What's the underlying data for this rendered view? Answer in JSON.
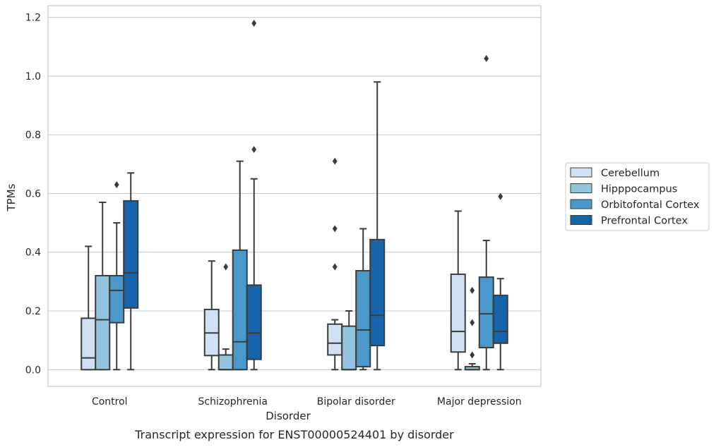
{
  "caption": "Transcript expression for ENST00000524401 by disorder",
  "chart_data": {
    "type": "boxplot",
    "xlabel": "Disorder",
    "ylabel": "TPMs",
    "ylim": [
      -0.057,
      1.24
    ],
    "yticks": [
      0.0,
      0.2,
      0.4,
      0.6,
      0.8,
      1.0,
      1.2
    ],
    "ytick_labels": [
      "0.0",
      "0.2",
      "0.4",
      "0.6",
      "0.8",
      "1.0",
      "1.2"
    ],
    "grid": "horizontal",
    "legend_position": "right",
    "categories": [
      "Control",
      "Schizophrenia",
      "Bipolar disorder",
      "Major depression"
    ],
    "series": [
      {
        "name": "Cerebellum",
        "color": "#cfe1f2",
        "boxes": [
          {
            "whislo": 0.0,
            "q1": 0.0,
            "med": 0.04,
            "q3": 0.175,
            "whishi": 0.42,
            "fliers": []
          },
          {
            "whislo": 0.0,
            "q1": 0.048,
            "med": 0.125,
            "q3": 0.205,
            "whishi": 0.37,
            "fliers": []
          },
          {
            "whislo": 0.0,
            "q1": 0.05,
            "med": 0.09,
            "q3": 0.155,
            "whishi": 0.17,
            "fliers": [
              0.35,
              0.48,
              0.71
            ]
          },
          {
            "whislo": 0.0,
            "q1": 0.06,
            "med": 0.13,
            "q3": 0.325,
            "whishi": 0.54,
            "fliers": []
          }
        ]
      },
      {
        "name": "Hipppocampus",
        "color": "#93c4de",
        "boxes": [
          {
            "whislo": 0.0,
            "q1": 0.0,
            "med": 0.17,
            "q3": 0.32,
            "whishi": 0.57,
            "fliers": []
          },
          {
            "whislo": 0.0,
            "q1": 0.0,
            "med": 0.0,
            "q3": 0.05,
            "whishi": 0.07,
            "fliers": [
              0.35
            ]
          },
          {
            "whislo": 0.0,
            "q1": 0.0,
            "med": 0.0,
            "q3": 0.148,
            "whishi": 0.2,
            "fliers": []
          },
          {
            "whislo": 0.0,
            "q1": 0.0,
            "med": 0.0,
            "q3": 0.01,
            "whishi": 0.02,
            "fliers": [
              0.05,
              0.16,
              0.27
            ]
          }
        ]
      },
      {
        "name": "Orbitofontal Cortex",
        "color": "#4a98c9",
        "boxes": [
          {
            "whislo": 0.0,
            "q1": 0.16,
            "med": 0.27,
            "q3": 0.32,
            "whishi": 0.5,
            "fliers": [
              0.63
            ]
          },
          {
            "whislo": 0.0,
            "q1": 0.0,
            "med": 0.095,
            "q3": 0.407,
            "whishi": 0.71,
            "fliers": []
          },
          {
            "whislo": 0.0,
            "q1": 0.01,
            "med": 0.135,
            "q3": 0.337,
            "whishi": 0.48,
            "fliers": []
          },
          {
            "whislo": 0.0,
            "q1": 0.075,
            "med": 0.19,
            "q3": 0.315,
            "whishi": 0.44,
            "fliers": [
              1.06
            ]
          }
        ]
      },
      {
        "name": "Prefrontal Cortex",
        "color": "#1764ab",
        "boxes": [
          {
            "whislo": 0.0,
            "q1": 0.21,
            "med": 0.33,
            "q3": 0.575,
            "whishi": 0.67,
            "fliers": []
          },
          {
            "whislo": 0.0,
            "q1": 0.035,
            "med": 0.125,
            "q3": 0.288,
            "whishi": 0.65,
            "fliers": [
              0.75,
              1.18
            ]
          },
          {
            "whislo": 0.0,
            "q1": 0.082,
            "med": 0.185,
            "q3": 0.443,
            "whishi": 0.98,
            "fliers": []
          },
          {
            "whislo": 0.0,
            "q1": 0.09,
            "med": 0.13,
            "q3": 0.253,
            "whishi": 0.31,
            "fliers": [
              0.59
            ]
          }
        ]
      }
    ]
  }
}
